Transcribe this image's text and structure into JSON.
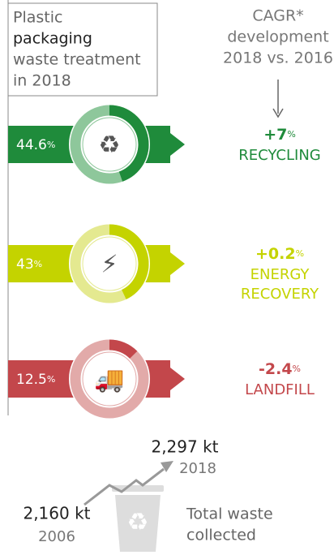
{
  "title": {
    "lines": [
      "Plastic",
      "packaging",
      "waste treatment",
      "in 2018"
    ]
  },
  "cagr_header": {
    "lines": [
      "CAGR*",
      "development",
      "2018 vs. 2016"
    ]
  },
  "rows": [
    {
      "share": 44.6,
      "unit": "%",
      "change": "+7",
      "change_unit": "%",
      "label": [
        "RECYCLING"
      ],
      "color": "#1f8b3b",
      "light": "#8ec79b"
    },
    {
      "share": 43,
      "unit": "%",
      "change": "+0.2",
      "change_unit": "%",
      "label": [
        "ENERGY",
        "RECOVERY"
      ],
      "color": "#c4d300",
      "light": "#e4e990"
    },
    {
      "share": 12.5,
      "unit": "%",
      "change": "-2.4",
      "change_unit": "%",
      "label": [
        "LANDFILL"
      ],
      "color": "#c3474b",
      "light": "#e2aaa9"
    }
  ],
  "total": {
    "end_value": "2,297 kt",
    "end_year": "2018",
    "start_value": "2,160 kt",
    "start_year": "2006",
    "caption": [
      "Total waste",
      "collected"
    ]
  }
}
